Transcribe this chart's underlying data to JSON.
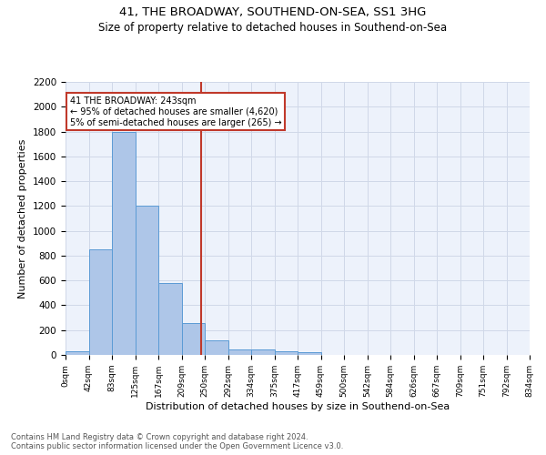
{
  "title1": "41, THE BROADWAY, SOUTHEND-ON-SEA, SS1 3HG",
  "title2": "Size of property relative to detached houses in Southend-on-Sea",
  "xlabel": "Distribution of detached houses by size in Southend-on-Sea",
  "ylabel": "Number of detached properties",
  "footnote1": "Contains HM Land Registry data © Crown copyright and database right 2024.",
  "footnote2": "Contains public sector information licensed under the Open Government Licence v3.0.",
  "annotation_line1": "41 THE BROADWAY: 243sqm",
  "annotation_line2": "← 95% of detached houses are smaller (4,620)",
  "annotation_line3": "5% of semi-detached houses are larger (265) →",
  "bar_left_edges": [
    0,
    41.5,
    83,
    124.5,
    166,
    207.5,
    249,
    290.5,
    332,
    373.5,
    415,
    456.5,
    498,
    539.5,
    581,
    622.5,
    664,
    705.5,
    747,
    788.5
  ],
  "bar_width": 41.5,
  "bar_heights": [
    30,
    850,
    1800,
    1200,
    580,
    260,
    115,
    45,
    45,
    30,
    20,
    0,
    0,
    0,
    0,
    0,
    0,
    0,
    0,
    0
  ],
  "tick_labels": [
    "0sqm",
    "42sqm",
    "83sqm",
    "125sqm",
    "167sqm",
    "209sqm",
    "250sqm",
    "292sqm",
    "334sqm",
    "375sqm",
    "417sqm",
    "459sqm",
    "500sqm",
    "542sqm",
    "584sqm",
    "626sqm",
    "667sqm",
    "709sqm",
    "751sqm",
    "792sqm",
    "834sqm"
  ],
  "tick_positions": [
    0,
    41.5,
    83,
    124.5,
    166,
    207.5,
    249,
    290.5,
    332,
    373.5,
    415,
    456.5,
    498,
    539.5,
    581,
    622.5,
    664,
    705.5,
    747,
    788.5,
    830
  ],
  "ylim": [
    0,
    2200
  ],
  "xlim": [
    0,
    830
  ],
  "vline_x": 243,
  "bar_color": "#aec6e8",
  "bar_edge_color": "#5b9bd5",
  "vline_color": "#c0392b",
  "grid_color": "#d0d8e8",
  "bg_color": "#edf2fb",
  "annotation_box_color": "#c0392b",
  "title1_fontsize": 9.5,
  "title2_fontsize": 8.5,
  "tick_fontsize": 6.5,
  "ylabel_fontsize": 8,
  "xlabel_fontsize": 8,
  "footnote_fontsize": 6,
  "ytick_fontsize": 7.5,
  "annotation_fontsize": 7
}
